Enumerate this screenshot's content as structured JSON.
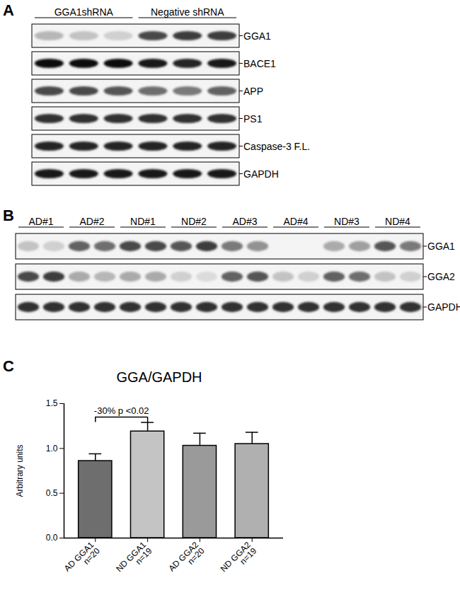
{
  "figure": {
    "panels": [
      {
        "label": "A",
        "groups": [
          {
            "label": "GGA1shRNA",
            "lanes": 3
          },
          {
            "label": "Negative shRNA",
            "lanes": 3
          }
        ],
        "rows": [
          {
            "label": "GGA1",
            "intensity": [
              0.25,
              0.2,
              0.15,
              0.7,
              0.75,
              0.75
            ]
          },
          {
            "label": "BACE1",
            "intensity": [
              0.95,
              0.95,
              0.95,
              0.9,
              0.85,
              0.9
            ]
          },
          {
            "label": "APP",
            "intensity": [
              0.7,
              0.7,
              0.65,
              0.55,
              0.5,
              0.6
            ]
          },
          {
            "label": "PS1",
            "intensity": [
              0.8,
              0.8,
              0.8,
              0.8,
              0.8,
              0.8
            ]
          },
          {
            "label": "Caspase-3 F.L.",
            "intensity": [
              0.85,
              0.85,
              0.85,
              0.85,
              0.85,
              0.85
            ]
          },
          {
            "label": "GAPDH",
            "intensity": [
              0.9,
              0.9,
              0.9,
              0.9,
              0.9,
              0.9
            ]
          }
        ]
      },
      {
        "label": "B",
        "groups": [
          {
            "label": "AD#1",
            "lanes": 2
          },
          {
            "label": "AD#2",
            "lanes": 2
          },
          {
            "label": "ND#1",
            "lanes": 2
          },
          {
            "label": "ND#2",
            "lanes": 2
          },
          {
            "label": "AD#3",
            "lanes": 2
          },
          {
            "label": "AD#4",
            "lanes": 2
          },
          {
            "label": "ND#3",
            "lanes": 2
          },
          {
            "label": "ND#4",
            "lanes": 2
          }
        ],
        "rows": [
          {
            "label": "GGA1",
            "intensity": [
              0.2,
              0.15,
              0.6,
              0.55,
              0.7,
              0.7,
              0.65,
              0.75,
              0.5,
              0.4,
              0,
              0,
              0.3,
              0.35,
              0.65,
              0.5
            ]
          },
          {
            "label": "GGA2",
            "intensity": [
              0.7,
              0.75,
              0.3,
              0.25,
              0.3,
              0.3,
              0.15,
              0.1,
              0.6,
              0.65,
              0.2,
              0.15,
              0.6,
              0.55,
              0.2,
              0.15
            ]
          },
          {
            "label": "GAPDH",
            "intensity": [
              0.8,
              0.8,
              0.8,
              0.8,
              0.8,
              0.8,
              0.8,
              0.8,
              0.8,
              0.8,
              0.8,
              0.8,
              0.8,
              0.8,
              0.8,
              0.8
            ]
          }
        ]
      }
    ],
    "chart_panel_label": "C"
  },
  "chart_data": {
    "type": "bar",
    "title": "GGA/GAPDH",
    "y_label": "Arbitrary units",
    "categories": [
      "AD GGA1\nn=20",
      "ND GGA1\nn=19",
      "AD GGA2\nn=20",
      "ND GGA2\nn=19"
    ],
    "values": [
      0.86,
      1.19,
      1.03,
      1.05
    ],
    "error": [
      0.08,
      0.1,
      0.14,
      0.13
    ],
    "colors": [
      "#6e6e6e",
      "#c4c4c4",
      "#9a9a9a",
      "#b0b0b0"
    ],
    "ylim": [
      0,
      1.5
    ],
    "yticks": [
      {
        "value": 0,
        "label": "0.0"
      },
      {
        "value": 0.5,
        "label": "0.5"
      },
      {
        "value": 1,
        "label": "1.0"
      },
      {
        "value": 1.5,
        "label": "1.5"
      }
    ],
    "annotation": {
      "text": "-30% p <0.02",
      "from": 0,
      "to": 1,
      "y": 1.35
    },
    "grid": false
  }
}
